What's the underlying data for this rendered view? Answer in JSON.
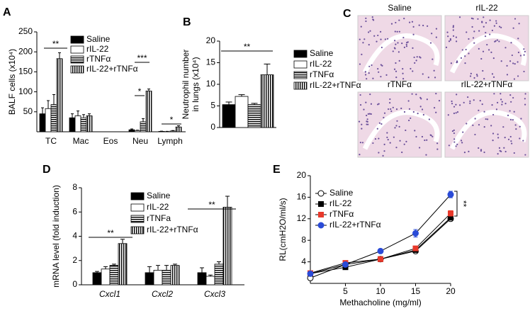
{
  "chart_data": [
    {
      "type": "bar",
      "panel": "A",
      "ylabel": [
        "BALF cells (x10⁴)"
      ],
      "categories": [
        "TC",
        "Mac",
        "Eos",
        "Neu",
        "Lymph"
      ],
      "ylim": [
        0,
        250
      ],
      "yticks": [
        50,
        100,
        150,
        200,
        250
      ],
      "series": [
        {
          "name": "Saline",
          "color": "#000000",
          "pattern": "solid",
          "values": [
            45,
            35,
            0,
            5,
            1
          ],
          "errors": [
            15,
            10,
            0,
            2,
            0.5
          ]
        },
        {
          "name": "rIL-22",
          "color": "#000000",
          "pattern": "none",
          "values": [
            58,
            40,
            0,
            3,
            0.5
          ],
          "errors": [
            20,
            12,
            0,
            1,
            0.5
          ]
        },
        {
          "name": "rTNFα",
          "color": "#000000",
          "pattern": "hstripe",
          "values": [
            68,
            35,
            0,
            25,
            2
          ],
          "errors": [
            25,
            8,
            0,
            8,
            1
          ]
        },
        {
          "name": "rIL-22+rTNFα",
          "color": "#000000",
          "pattern": "vstripe",
          "values": [
            183,
            40,
            0,
            102,
            12
          ],
          "errors": [
            15,
            5,
            0,
            5,
            3
          ]
        }
      ],
      "annotations": [
        "**",
        "***",
        "*",
        "*"
      ]
    },
    {
      "type": "bar",
      "panel": "B",
      "ylabel": [
        "Neutrophil number",
        "in lungs (x10⁴)"
      ],
      "categories": [
        null
      ],
      "ylim": [
        0,
        20
      ],
      "yticks": [
        0,
        5,
        10,
        15,
        20
      ],
      "series": [
        {
          "name": "Saline",
          "color": "#000000",
          "pattern": "solid",
          "values": [
            5.3
          ],
          "errors": [
            0.6
          ]
        },
        {
          "name": "rIL-22",
          "color": "#000000",
          "pattern": "none",
          "values": [
            7.2
          ],
          "errors": [
            0.4
          ]
        },
        {
          "name": "rTNFα",
          "color": "#000000",
          "pattern": "hstripe",
          "values": [
            5.3
          ],
          "errors": [
            0.3
          ]
        },
        {
          "name": "rIL-22+rTNFα",
          "color": "#000000",
          "pattern": "vstripe",
          "values": [
            12.2
          ],
          "errors": [
            2.5
          ]
        }
      ],
      "annotations": [
        "**"
      ]
    },
    {
      "type": "bar",
      "panel": "D",
      "ylabel": [
        "mRNA level (fold induction)"
      ],
      "categories": [
        "Cxcl1",
        "Cxcl2",
        "Cxcl3"
      ],
      "italic_categories": true,
      "ylim": [
        0,
        8
      ],
      "yticks": [
        0,
        2,
        4,
        6,
        8
      ],
      "series": [
        {
          "name": "Saline",
          "color": "#000000",
          "pattern": "solid",
          "values": [
            1.0,
            1.0,
            1.0
          ],
          "errors": [
            0.1,
            0.5,
            0.4
          ]
        },
        {
          "name": "rIL-22",
          "color": "#000000",
          "pattern": "none",
          "values": [
            1.3,
            1.2,
            0.7
          ],
          "errors": [
            0.2,
            0.4,
            0.1
          ]
        },
        {
          "name": "rTNFa",
          "color": "#000000",
          "pattern": "hstripe",
          "values": [
            1.6,
            1.2,
            1.7
          ],
          "errors": [
            0.1,
            0.4,
            0.2
          ]
        },
        {
          "name": "rIL-22+rTNFα",
          "color": "#000000",
          "pattern": "vstripe",
          "values": [
            3.4,
            1.6,
            6.4
          ],
          "errors": [
            0.35,
            0.1,
            0.9
          ]
        }
      ],
      "annotations": [
        "**",
        "**"
      ]
    },
    {
      "type": "line",
      "panel": "E",
      "ylabel": [
        "RL(cmH2O/ml/s)"
      ],
      "xlabel": "Methacholine (mg/ml)",
      "x": [
        0,
        5,
        10,
        15,
        20
      ],
      "xlim": [
        0,
        20
      ],
      "xticks": [
        5,
        10,
        15,
        20
      ],
      "ylim": [
        0,
        20
      ],
      "yticks": [
        4,
        8,
        12,
        16,
        20
      ],
      "series": [
        {
          "name": "Saline",
          "color": "#000000",
          "marker": "open-circle",
          "values": [
            1.0,
            3.5,
            4.5,
            6.0,
            12.0
          ],
          "errors": [
            0.3,
            0.3,
            0.3,
            0.3,
            0.4
          ]
        },
        {
          "name": "rIL-22",
          "color": "#000000",
          "marker": "square",
          "values": [
            1.8,
            3.0,
            4.5,
            6.2,
            12.2
          ],
          "errors": [
            0.3,
            0.3,
            0.3,
            0.3,
            0.4
          ]
        },
        {
          "name": "rTNFα",
          "color": "#e8392b",
          "marker": "square",
          "values": [
            1.9,
            3.8,
            4.5,
            6.5,
            13.0
          ],
          "errors": [
            0.3,
            0.3,
            0.3,
            0.3,
            0.5
          ]
        },
        {
          "name": "rIL-22+rTNFα",
          "color": "#2a4bd7",
          "marker": "circle",
          "values": [
            1.8,
            3.5,
            6.0,
            9.3,
            16.5
          ],
          "errors": [
            0.3,
            0.3,
            0.4,
            0.7,
            0.6
          ]
        }
      ],
      "annotations": [
        "**"
      ]
    }
  ],
  "panel_c": {
    "label": "C",
    "captions": [
      "Saline",
      "rIL-22",
      "rTNFα",
      "rIL-22+rTNFα"
    ]
  }
}
